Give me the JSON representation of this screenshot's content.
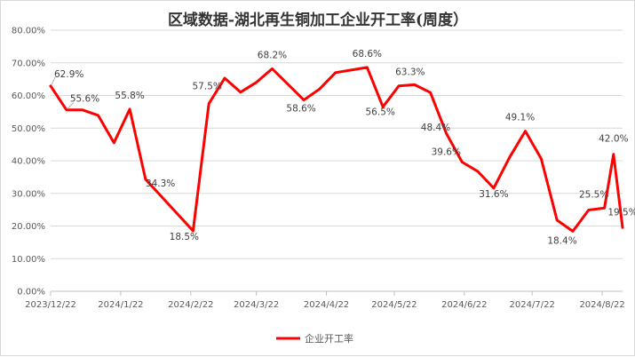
{
  "chart_data": {
    "type": "line",
    "title": "区域数据-湖北再生铜加工企业开工率(周度）",
    "xlabel": "",
    "ylabel": "",
    "ylim": [
      0,
      80
    ],
    "y_ticks": [
      "0.00%",
      "10.00%",
      "20.00%",
      "30.00%",
      "40.00%",
      "50.00%",
      "60.00%",
      "70.00%",
      "80.00%"
    ],
    "x_range": [
      "2023-12-22",
      "2024-08-31"
    ],
    "x_ticks": [
      {
        "date": "2023-12-22",
        "label": "2023/12/22"
      },
      {
        "date": "2024-01-22",
        "label": "2024/1/22"
      },
      {
        "date": "2024-02-22",
        "label": "2024/2/22"
      },
      {
        "date": "2024-03-22",
        "label": "2024/3/22"
      },
      {
        "date": "2024-04-22",
        "label": "2024/4/22"
      },
      {
        "date": "2024-05-22",
        "label": "2024/5/22"
      },
      {
        "date": "2024-06-22",
        "label": "2024/6/22"
      },
      {
        "date": "2024-07-22",
        "label": "2024/7/22"
      },
      {
        "date": "2024-08-22",
        "label": "2024/8/22"
      }
    ],
    "grid": true,
    "legend_position": "bottom",
    "series": [
      {
        "name": "企业开工率",
        "color": "#ff0000",
        "points": [
          {
            "x": "2023-12-22",
            "y": 62.9,
            "label": "62.9%"
          },
          {
            "x": "2023-12-29",
            "y": 55.6,
            "label": "55.6%"
          },
          {
            "x": "2024-01-05",
            "y": 55.6
          },
          {
            "x": "2024-01-12",
            "y": 53.9
          },
          {
            "x": "2024-01-19",
            "y": 45.5
          },
          {
            "x": "2024-01-26",
            "y": 55.8,
            "label": "55.8%"
          },
          {
            "x": "2024-02-02",
            "y": 34.3,
            "label": "34.3%"
          },
          {
            "x": "2024-02-23",
            "y": 18.5,
            "label": "18.5%"
          },
          {
            "x": "2024-03-01",
            "y": 57.5,
            "label": "57.5%"
          },
          {
            "x": "2024-03-08",
            "y": 65.3
          },
          {
            "x": "2024-03-15",
            "y": 61.0
          },
          {
            "x": "2024-03-22",
            "y": 64.0
          },
          {
            "x": "2024-03-29",
            "y": 68.2,
            "label": "68.2%"
          },
          {
            "x": "2024-04-12",
            "y": 58.6,
            "label": "58.6%"
          },
          {
            "x": "2024-04-19",
            "y": 62.0
          },
          {
            "x": "2024-04-26",
            "y": 67.0
          },
          {
            "x": "2024-05-10",
            "y": 68.6,
            "label": "68.6%"
          },
          {
            "x": "2024-05-17",
            "y": 56.5,
            "label": "56.5%"
          },
          {
            "x": "2024-05-24",
            "y": 62.9
          },
          {
            "x": "2024-05-31",
            "y": 63.3,
            "label": "63.3%"
          },
          {
            "x": "2024-06-07",
            "y": 60.9
          },
          {
            "x": "2024-06-14",
            "y": 48.4,
            "label": "48.4%"
          },
          {
            "x": "2024-06-21",
            "y": 39.6,
            "label": "39.6%"
          },
          {
            "x": "2024-06-28",
            "y": 36.7
          },
          {
            "x": "2024-07-05",
            "y": 31.6,
            "label": "31.6%"
          },
          {
            "x": "2024-07-12",
            "y": 41.0
          },
          {
            "x": "2024-07-19",
            "y": 49.1,
            "label": "49.1%"
          },
          {
            "x": "2024-07-26",
            "y": 40.6
          },
          {
            "x": "2024-08-02",
            "y": 21.8
          },
          {
            "x": "2024-08-09",
            "y": 18.4,
            "label": "18.4%"
          },
          {
            "x": "2024-08-16",
            "y": 24.9
          },
          {
            "x": "2024-08-23",
            "y": 25.5,
            "label": "25.5%"
          },
          {
            "x": "2024-08-27",
            "y": 42.0,
            "label": "42.0%"
          },
          {
            "x": "2024-08-31",
            "y": 19.5,
            "label": "19.5%"
          }
        ]
      }
    ]
  }
}
